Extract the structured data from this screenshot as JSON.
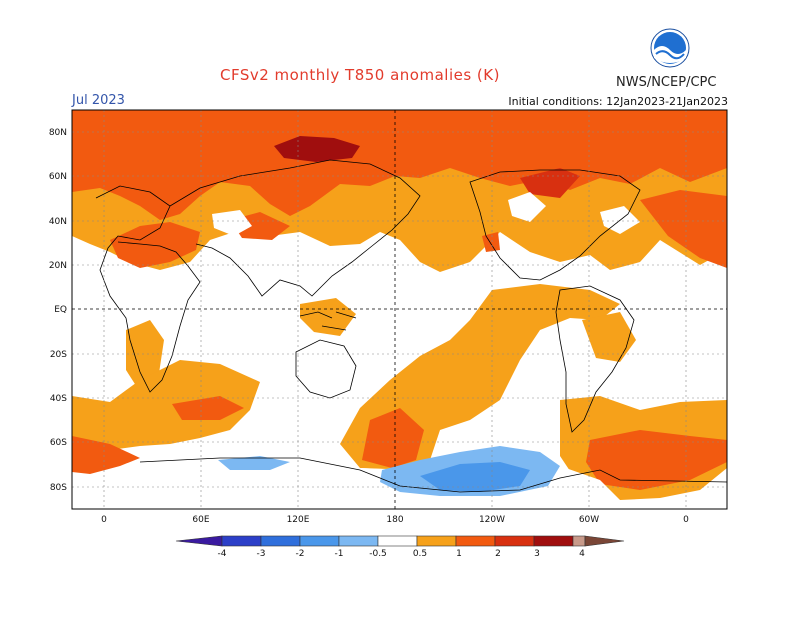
{
  "title": "CFSv2 monthly T850 anomalies (K)",
  "agency": "NWS/NCEP/CPC",
  "logo_text": "NOAA",
  "month": "Jul 2023",
  "initial_conditions": "Initial conditions: 12Jan2023-21Jan2023",
  "lat_labels": [
    "80N",
    "60N",
    "40N",
    "20N",
    "EQ",
    "20S",
    "40S",
    "60S",
    "80S"
  ],
  "lon_labels": [
    "0",
    "60E",
    "120E",
    "180",
    "120W",
    "60W",
    "0"
  ],
  "colorbar": {
    "labels": [
      "-4",
      "-3",
      "-2",
      "-1",
      "-0.5",
      "0.5",
      "1",
      "2",
      "3",
      "4"
    ],
    "colors": [
      "#3a1aa0",
      "#2c3fc8",
      "#2f6fdc",
      "#4a97ea",
      "#7cb8f2",
      "#ffffff",
      "#f6a11a",
      "#f25a10",
      "#d83010",
      "#a00e0e",
      "#c89a8a",
      "#7a4636"
    ]
  }
}
